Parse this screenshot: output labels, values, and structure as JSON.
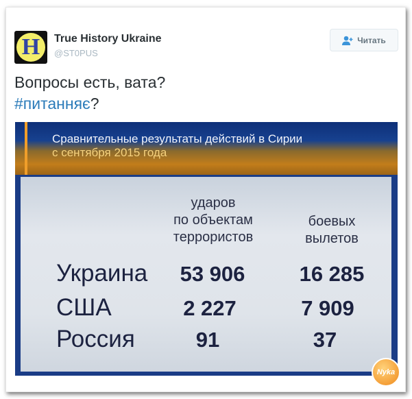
{
  "tweet": {
    "author_name": "True History Ukraine",
    "author_handle": "@ST0PUS",
    "avatar_letter": "H",
    "follow_label": "Читать",
    "text": "Вопросы есть, вата?",
    "hashtag": "#питанняє",
    "hashtag_suffix": "?"
  },
  "media": {
    "title": "Сравнительные результаты действий в Сирии",
    "subtitle": "с сентября 2015 года",
    "columns": [
      "ударов по объектам террористов",
      "боевых вылетов"
    ],
    "column_lines": [
      [
        "ударов",
        "по объектам",
        "террористов"
      ],
      [
        "боевых",
        "вылетов"
      ]
    ],
    "rows": [
      {
        "country": "Украина",
        "strikes": "53 906",
        "sorties": "16 285"
      },
      {
        "country": "США",
        "strikes": "2 227",
        "sorties": "7 909"
      },
      {
        "country": "Россия",
        "strikes": "91",
        "sorties": "37"
      }
    ],
    "watermark": "Nyka"
  },
  "colors": {
    "hashtag": "#2b7bb9",
    "band_orange": "#c27d1b",
    "panel": "#dfe4ea",
    "text_dark": "#1c2240"
  }
}
